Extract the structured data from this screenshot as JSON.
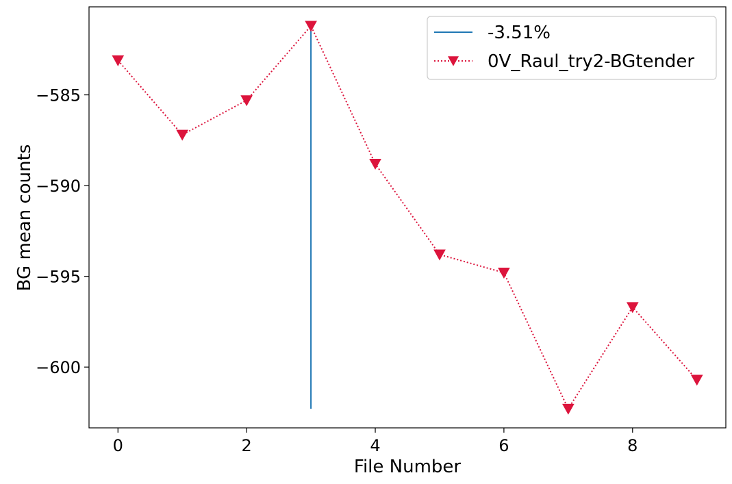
{
  "chart_data": {
    "type": "line",
    "xlabel": "File Number",
    "ylabel": "BG mean counts",
    "xlim": [
      -0.45,
      9.45
    ],
    "ylim": [
      -603.35,
      -580.15
    ],
    "x_ticks": [
      0,
      2,
      4,
      6,
      8
    ],
    "y_ticks": [
      -585,
      -590,
      -595,
      -600
    ],
    "x_tick_labels": [
      "0",
      "2",
      "4",
      "6",
      "8"
    ],
    "y_tick_labels": [
      "−585",
      "−590",
      "−595",
      "−600"
    ],
    "grid": false,
    "legend_position": "top-right",
    "series": [
      {
        "name": "0V_Raul_try2-BGtender",
        "style": "dotted-line-with-down-triangle-markers",
        "color": "#dc143c",
        "x": [
          0,
          1,
          2,
          3,
          4,
          5,
          6,
          7,
          8,
          9
        ],
        "y": [
          -583.1,
          -587.2,
          -585.3,
          -581.2,
          -588.8,
          -593.8,
          -594.8,
          -602.3,
          -596.7,
          -600.7
        ]
      }
    ],
    "vlines": [
      {
        "name": "-3.51%",
        "color": "#1f77b4",
        "x": 3,
        "ymin": -602.3,
        "ymax": -581.2
      }
    ]
  }
}
